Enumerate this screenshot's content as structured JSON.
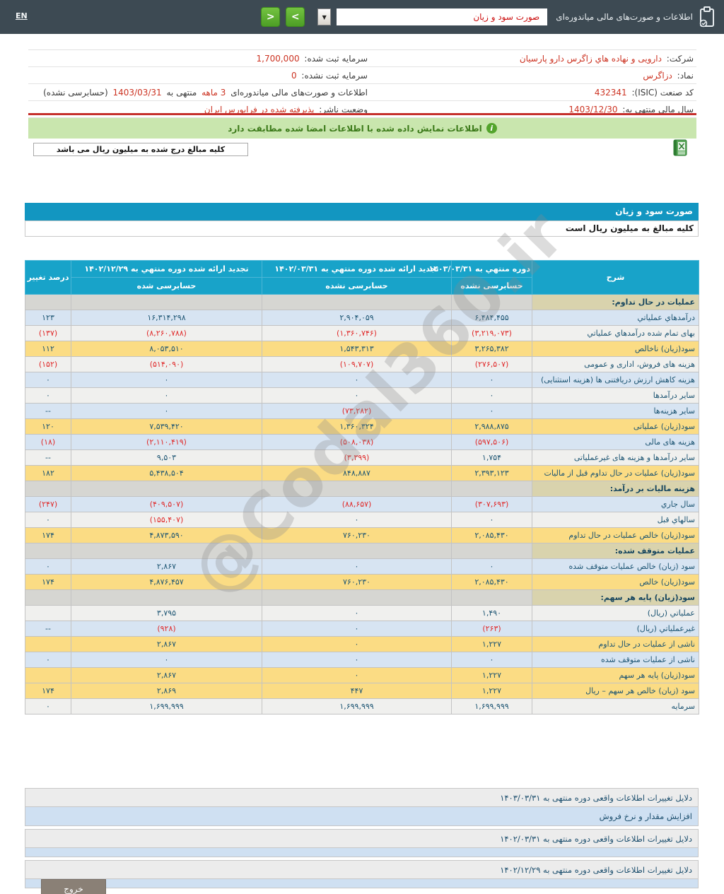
{
  "header": {
    "title": "اطلاعات و صورت‌های مالی میاندوره‌ای",
    "report_select_value": "صورت سود و زیان",
    "combo_arrow": "▼",
    "nav_next": ">",
    "nav_prev": "<",
    "lang_link": "EN"
  },
  "company": {
    "rows": [
      {
        "right": [
          [
            "شرکت: ",
            0
          ],
          [
            "دارویی و نهاده هاي زاگرس دارو پارسیان",
            1
          ]
        ],
        "left": [
          [
            "سرمایه ثبت شده: ",
            0
          ],
          [
            "1,700,000",
            1
          ]
        ]
      },
      {
        "right": [
          [
            "نماد: ",
            0
          ],
          [
            "دزاگرس",
            1
          ]
        ],
        "left": [
          [
            "سرمایه ثبت نشده: ",
            0
          ],
          [
            "0",
            1
          ]
        ]
      },
      {
        "right": [
          [
            "کد صنعت (ISIC): ",
            0
          ],
          [
            "432341",
            1
          ]
        ],
        "left": [
          [
            "اطلاعات و صورت‌های مالی میاندوره‌ای ",
            0
          ],
          [
            "3 ماهه",
            1
          ],
          [
            " منتهی به ",
            0
          ],
          [
            "1403/03/31",
            1
          ],
          [
            " (حسابرسی نشده)",
            0
          ]
        ]
      },
      {
        "right": [
          [
            "سال مالی منتهی به: ",
            0
          ],
          [
            "1403/12/30",
            1
          ]
        ],
        "left": [
          [
            "وضعیت ناشر: ",
            0
          ],
          [
            "پذیرفته شده در فرابورس ایران",
            1
          ]
        ]
      }
    ]
  },
  "banner": {
    "text": "اطلاعات نمایش داده شده با اطلاعات امضا شده مطابقت دارد",
    "icon": "info-icon",
    "icon_glyph": "i"
  },
  "amounts_note": "کلیه مبالغ درج شده به میلیون ریال می باشد",
  "statement": {
    "title": "صورت سود و زیان",
    "unit_note": "کلیه مبالغ به میلیون ریال است"
  },
  "table": {
    "desc_header": "شرح",
    "pct_header": "درصد تغییر",
    "periods": [
      {
        "title": "دوره منتهي به ۱۴۰۳/۰۳/۳۱",
        "audit": "حسابرسی نشده"
      },
      {
        "title": "تجدید ارائه شده دوره منتهي به ۱۴۰۲/۰۳/۳۱",
        "audit": "حسابرسی نشده"
      },
      {
        "title": "تجدید ارائه شده دوره منتهي به ۱۴۰۲/۱۲/۲۹",
        "audit": "حسابرسی شده"
      }
    ],
    "rows": [
      {
        "type": "section",
        "label": "عملیات در حال تداوم:"
      },
      {
        "bg": "blue",
        "label": "درآمدهاي عملیاتي",
        "v1": "۶,۴۸۴,۴۵۵",
        "v2": "۲,۹۰۴,۰۵۹",
        "v3": "۱۶,۳۱۴,۲۹۸",
        "pct": "۱۲۳"
      },
      {
        "bg": "white",
        "label": "بهای تمام شده درآمدهاي عملیاتي",
        "v1": "(۳,۲۱۹,۰۷۳)",
        "v2": "(۱,۳۶۰,۷۴۶)",
        "v3": "(۸,۲۶۰,۷۸۸)",
        "pct": "(۱۳۷)"
      },
      {
        "bg": "yellow",
        "label": "سود(زیان) ناخالص",
        "v1": "۳,۲۶۵,۳۸۲",
        "v2": "۱,۵۴۳,۳۱۳",
        "v3": "۸,۰۵۳,۵۱۰",
        "pct": "۱۱۲"
      },
      {
        "bg": "white",
        "label": "هزینه های فروش، اداری و عمومی",
        "v1": "(۲۷۶,۵۰۷)",
        "v2": "(۱۰۹,۷۰۷)",
        "v3": "(۵۱۴,۰۹۰)",
        "pct": "(۱۵۲)"
      },
      {
        "bg": "blue",
        "label": "هزینه کاهش ارزش دریافتنی ها (هزینه استثنایی)",
        "v1": "۰",
        "v2": "۰",
        "v3": "۰",
        "pct": "۰"
      },
      {
        "bg": "white",
        "label": "سایر درآمدها",
        "v1": "۰",
        "v2": "۰",
        "v3": "۰",
        "pct": "۰"
      },
      {
        "bg": "blue",
        "label": "سایر هزینه‌ها",
        "v1": "۰",
        "v2": "(۷۳,۲۸۲)",
        "v3": "۰",
        "pct": "--"
      },
      {
        "bg": "yellow",
        "label": "سود(زیان) عملیاتی",
        "v1": "۲,۹۸۸,۸۷۵",
        "v2": "۱,۳۶۰,۳۲۴",
        "v3": "۷,۵۳۹,۴۲۰",
        "pct": "۱۲۰"
      },
      {
        "bg": "blue",
        "label": "هزینه های مالی",
        "v1": "(۵۹۷,۵۰۶)",
        "v2": "(۵۰۸,۰۳۸)",
        "v3": "(۲,۱۱۰,۴۱۹)",
        "pct": "(۱۸)"
      },
      {
        "bg": "white",
        "label": "سایر درآمدها و هزینه های غیرعملیاتی",
        "v1": "۱,۷۵۴",
        "v2": "(۳,۳۹۹)",
        "v3": "۹,۵۰۳",
        "pct": "--"
      },
      {
        "bg": "yellow",
        "label": "سود(زیان) عملیات در حال تداوم قبل از مالیات",
        "v1": "۲,۳۹۳,۱۲۳",
        "v2": "۸۴۸,۸۸۷",
        "v3": "۵,۴۳۸,۵۰۴",
        "pct": "۱۸۲"
      },
      {
        "type": "section",
        "label": "هزینه مالیات بر درآمد:"
      },
      {
        "bg": "blue",
        "label": "سال جاري",
        "v1": "(۳۰۷,۶۹۳)",
        "v2": "(۸۸,۶۵۷)",
        "v3": "(۴۰۹,۵۰۷)",
        "pct": "(۲۴۷)"
      },
      {
        "bg": "white",
        "label": "سالهاي قبل",
        "v1": "۰",
        "v2": "۰",
        "v3": "(۱۵۵,۴۰۷)",
        "pct": "۰"
      },
      {
        "bg": "yellow",
        "label": "سود(زیان) خالص عملیات در حال تداوم",
        "v1": "۲,۰۸۵,۴۳۰",
        "v2": "۷۶۰,۲۳۰",
        "v3": "۴,۸۷۳,۵۹۰",
        "pct": "۱۷۴"
      },
      {
        "type": "section",
        "label": "عملیات متوقف شده:"
      },
      {
        "bg": "blue",
        "label": "سود (زیان) خالص عملیات متوقف شده",
        "v1": "۰",
        "v2": "۰",
        "v3": "۲,۸۶۷",
        "pct": "۰"
      },
      {
        "bg": "yellow",
        "label": "سود(زیان) خالص",
        "v1": "۲,۰۸۵,۴۳۰",
        "v2": "۷۶۰,۲۳۰",
        "v3": "۴,۸۷۶,۴۵۷",
        "pct": "۱۷۴"
      },
      {
        "type": "section",
        "label": "سود(زیان) پایه هر سهم:"
      },
      {
        "bg": "white",
        "label": "عملیاتي (ریال)",
        "v1": "۱,۴۹۰",
        "v2": "۰",
        "v3": "۳,۷۹۵",
        "pct": ""
      },
      {
        "bg": "blue",
        "label": "غیرعملیاتي (ریال)",
        "v1": "(۲۶۳)",
        "v2": "۰",
        "v3": "(۹۲۸)",
        "pct": "--"
      },
      {
        "bg": "yellow",
        "label": "ناشی از عملیات در حال تداوم",
        "v1": "۱,۲۲۷",
        "v2": "۰",
        "v3": "۲,۸۶۷",
        "pct": ""
      },
      {
        "bg": "blue",
        "label": "ناشی از عملیات متوقف شده",
        "v1": "۰",
        "v2": "۰",
        "v3": "۰",
        "pct": "۰"
      },
      {
        "bg": "yellow",
        "label": "سود(زیان) پایه هر سهم",
        "v1": "۱,۲۲۷",
        "v2": "۰",
        "v3": "۲,۸۶۷",
        "pct": ""
      },
      {
        "bg": "yellow",
        "label": "سود (زیان) خالص هر سهم – ریال",
        "v1": "۱,۲۲۷",
        "v2": "۴۴۷",
        "v3": "۲,۸۶۹",
        "pct": "۱۷۴"
      },
      {
        "bg": "white",
        "label": "سرمایه",
        "v1": "۱,۶۹۹,۹۹۹",
        "v2": "۱,۶۹۹,۹۹۹",
        "v3": "۱,۶۹۹,۹۹۹",
        "pct": "۰"
      }
    ]
  },
  "footer_rows": [
    {
      "bg": "gray",
      "text": "دلایل تغییرات اطلاعات واقعی دوره منتهی به ۱۴۰۳/۰۳/۳۱"
    },
    {
      "bg": "blue",
      "text": "افزایش مقدار و نرخ فروش"
    },
    {
      "bg": "gray",
      "text": "دلایل تغییرات اطلاعات واقعی دوره منتهی به ۱۴۰۲/۰۳/۳۱"
    },
    {
      "bg": "blue-thin",
      "text": ""
    },
    {
      "bg": "gray",
      "text": "دلایل تغییرات اطلاعات واقعی دوره منتهی به ۱۴۰۲/۱۲/۲۹"
    },
    {
      "bg": "blue-thin",
      "text": ""
    }
  ],
  "watermark": "@Codal360.ir",
  "exit_button": "خروج",
  "colors": {
    "topbar": "#3d4a53",
    "title_bar_blue": "#1296c1",
    "table_header_blue": "#18a3c9",
    "row_blue": "#d7e4f2",
    "row_yellow": "#fbdc84",
    "section_khaki": "#d9d3ad",
    "negative_red": "#e02b2b",
    "banner_green": "#c9e6ae",
    "nav_button_green": "#4d9e25"
  }
}
